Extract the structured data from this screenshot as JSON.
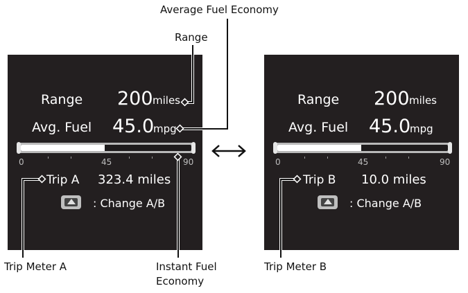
{
  "callouts": {
    "average_fuel_economy": "Average Fuel Economy",
    "range": "Range",
    "trip_meter_a": "Trip Meter A",
    "instant_fuel_economy_line1": "Instant Fuel",
    "instant_fuel_economy_line2": "Economy",
    "trip_meter_b": "Trip Meter B"
  },
  "swap_symbol": "↔",
  "left_screen": {
    "range_label": "Range",
    "range_value": "200",
    "range_unit": "miles",
    "avg_label": "Avg. Fuel",
    "avg_value": "45.0",
    "avg_unit": "mpg",
    "gauge_ticks": [
      "0",
      "45",
      "90"
    ],
    "gauge_fill_fraction": 0.49,
    "trip_label": "Trip A",
    "trip_value": "323.4 miles",
    "change_label": ": Change A/B"
  },
  "right_screen": {
    "range_label": "Range",
    "range_value": "200",
    "range_unit": "miles",
    "avg_label": "Avg. Fuel",
    "avg_value": "45.0",
    "avg_unit": "mpg",
    "gauge_ticks": [
      "0",
      "45",
      "90"
    ],
    "gauge_fill_fraction": 0.49,
    "trip_label": "Trip B",
    "trip_value": "10.0 miles",
    "change_label": ": Change A/B"
  },
  "colors": {
    "screen_bg": "#231f20",
    "text": "#ffffff",
    "gauge_track": "#b9b9b9"
  }
}
